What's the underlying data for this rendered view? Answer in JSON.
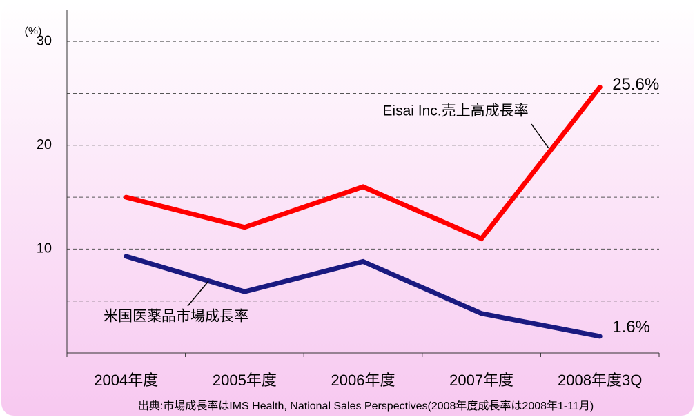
{
  "chart_data": {
    "type": "line",
    "unit_label": "(%)",
    "categories": [
      "2004年度",
      "2005年度",
      "2006年度",
      "2007年度",
      "2008年度3Q"
    ],
    "series": [
      {
        "name": "Eisai Inc.売上高成長率",
        "color": "#ff0000",
        "values": [
          15,
          12.1,
          16,
          11,
          25.6
        ],
        "value_labels": [
          null,
          null,
          null,
          null,
          "25.6%"
        ]
      },
      {
        "name": "米国医薬品市場成長率",
        "color": "#1a1a80",
        "values": [
          9.3,
          5.9,
          8.8,
          3.8,
          1.6
        ],
        "value_labels": [
          null,
          null,
          null,
          null,
          "1.6%"
        ]
      }
    ],
    "ylim": [
      0,
      33
    ],
    "yticks": [
      10,
      20,
      30
    ],
    "minor_yticks": [
      5,
      15,
      25
    ],
    "grid": true,
    "footnote": "出典:市場成長率はIMS Health, National Sales Perspectives(2008年度成長率は2008年1-11月)"
  }
}
